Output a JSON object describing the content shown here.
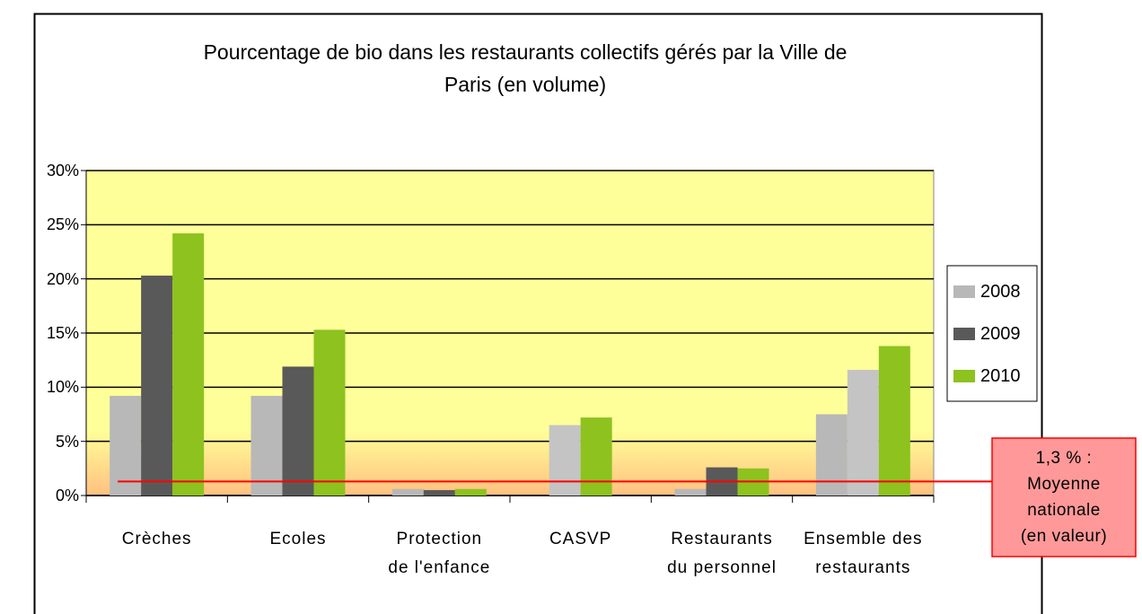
{
  "chart_data": {
    "type": "bar",
    "title": "Pourcentage de bio dans les restaurants collectifs gérés par la Ville de\nParis (en volume)",
    "categories": [
      "Crèches",
      "Ecoles",
      "Protection\nde l'enfance",
      "CASVP",
      "Restaurants\ndu personnel",
      "Ensemble des\nrestaurants"
    ],
    "series": [
      {
        "name": "2008",
        "color": "#b8b8b8",
        "values": [
          9.2,
          9.2,
          0.6,
          null,
          0.6,
          7.5
        ]
      },
      {
        "name": "2009",
        "color": "#595959",
        "colors": [
          "#595959",
          "#595959",
          "#595959",
          "#c4c4c4",
          "#595959",
          "#c4c4c4"
        ],
        "values": [
          20.3,
          11.9,
          0.5,
          6.5,
          2.6,
          11.6
        ]
      },
      {
        "name": "2010",
        "color": "#8dc21f",
        "values": [
          24.2,
          15.3,
          0.6,
          7.2,
          2.5,
          13.8
        ]
      }
    ],
    "ylim": [
      0,
      30
    ],
    "yticks": [
      {
        "value": 0,
        "label": "0%"
      },
      {
        "value": 5,
        "label": "5%"
      },
      {
        "value": 10,
        "label": "10%"
      },
      {
        "value": 15,
        "label": "15%"
      },
      {
        "value": 20,
        "label": "20%"
      },
      {
        "value": 25,
        "label": "25%"
      },
      {
        "value": 30,
        "label": "30%"
      }
    ],
    "grid": true,
    "legend": "right",
    "reference_line": {
      "value": 1.3,
      "color": "#ff0000",
      "label": "1,3 % :\nMoyenne\nnationale\n(en valeur)"
    }
  }
}
